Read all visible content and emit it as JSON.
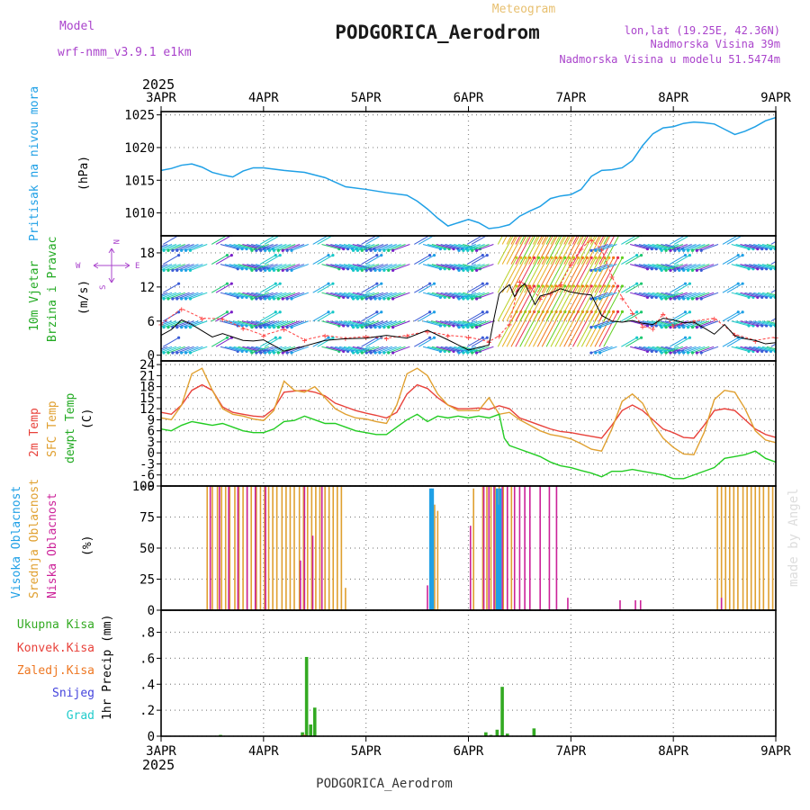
{
  "header": {
    "model_label": "Model",
    "model_name": "wrf-nmm_v3.9.1 e1km",
    "meteogram_label": "Meteogram",
    "station": "PODGORICA_Aerodrom",
    "lonlat": "lon,lat (19.25E, 42.36N)",
    "elevation": "Nadmorska Visina 39m",
    "model_elevation": "Nadmorska Visina u modelu 51.5474m"
  },
  "footer": {
    "station": "PODGORICA_Aerodrom",
    "credit": "made by Angel"
  },
  "time_axis": {
    "year": "2025",
    "labels": [
      "3APR",
      "4APR",
      "5APR",
      "6APR",
      "7APR",
      "8APR",
      "9APR"
    ],
    "days": [
      3,
      4,
      5,
      6,
      7,
      8,
      9
    ]
  },
  "colors": {
    "pressure": "#1fa0e6",
    "temp2m": "#e8413a",
    "sfc_temp": "#e0a030",
    "dewpt": "#22cc22",
    "high_cloud": "#1fa0e6",
    "mid_cloud": "#e0a030",
    "low_cloud": "#cc2299",
    "precip_total": "#33aa22",
    "precip_conv": "#e8413a",
    "precip_frz": "#ee7722",
    "precip_snow": "#4444dd",
    "precip_hail": "#22cccc",
    "wind_label": "#22aa22",
    "compass": "#aa44cc"
  },
  "panels": {
    "pressure": {
      "label_line1": "Pritisak na nivou mora",
      "unit": "(hPa)"
    },
    "wind": {
      "label_line1": "10m Vjetar",
      "label_line2": "Brzina i Pravac",
      "unit": "(m/s)",
      "compass_n": "N",
      "compass_s": "S",
      "compass_e": "E",
      "compass_w": "W"
    },
    "temp": {
      "label_temp": "2m Temp",
      "label_sfc": "SFC Temp",
      "label_dew": "dewpt Temp",
      "unit": "(C)"
    },
    "cloud": {
      "label_high": "Visoka Oblacnost",
      "label_mid": "Srednja Oblacnost",
      "label_low": "Niska Oblacnost",
      "unit": "(%)"
    },
    "precip": {
      "label_total": "Ukupna Kisa",
      "label_conv": "Konvek.Kisa",
      "label_frz": "Zaledj.Kisa",
      "label_snow": "Snijeg",
      "label_hail": "Grad",
      "unit": "1hr Precip (mm)"
    }
  },
  "chart_data": [
    {
      "type": "line",
      "name": "pressure",
      "x": [
        3.0,
        3.1,
        3.2,
        3.3,
        3.4,
        3.5,
        3.6,
        3.7,
        3.8,
        3.9,
        4.0,
        4.2,
        4.4,
        4.6,
        4.8,
        5.0,
        5.2,
        5.4,
        5.5,
        5.6,
        5.7,
        5.8,
        5.9,
        6.0,
        6.1,
        6.2,
        6.3,
        6.4,
        6.5,
        6.6,
        6.7,
        6.8,
        6.9,
        7.0,
        7.1,
        7.2,
        7.3,
        7.4,
        7.5,
        7.6,
        7.7,
        7.8,
        7.9,
        8.0,
        8.1,
        8.2,
        8.3,
        8.4,
        8.5,
        8.6,
        8.7,
        8.8,
        8.9,
        9.0
      ],
      "y": [
        1016.5,
        1016.8,
        1017.3,
        1017.5,
        1017.0,
        1016.2,
        1015.8,
        1015.5,
        1016.4,
        1016.9,
        1016.9,
        1016.5,
        1016.2,
        1015.4,
        1014.0,
        1013.6,
        1013.1,
        1012.7,
        1011.8,
        1010.6,
        1009.2,
        1008.0,
        1008.5,
        1009.0,
        1008.5,
        1007.6,
        1007.8,
        1008.2,
        1009.5,
        1010.3,
        1011.0,
        1012.2,
        1012.6,
        1012.8,
        1013.6,
        1015.6,
        1016.5,
        1016.6,
        1016.9,
        1018.0,
        1020.3,
        1022.1,
        1023.0,
        1023.2,
        1023.7,
        1023.9,
        1023.8,
        1023.6,
        1022.8,
        1022.0,
        1022.5,
        1023.2,
        1024.1,
        1024.6
      ],
      "ylim": [
        1006.5,
        1025.5
      ],
      "yticks": [
        1010,
        1015,
        1020,
        1025
      ]
    },
    {
      "type": "line",
      "name": "wind",
      "x": [
        3.0,
        3.1,
        3.2,
        3.3,
        3.4,
        3.5,
        3.6,
        3.7,
        3.8,
        3.9,
        4.0,
        4.2,
        4.4,
        4.6,
        4.8,
        5.0,
        5.2,
        5.4,
        5.6,
        5.8,
        6.0,
        6.2,
        6.25,
        6.3,
        6.35,
        6.4,
        6.45,
        6.5,
        6.55,
        6.6,
        6.65,
        6.7,
        6.8,
        6.9,
        7.0,
        7.1,
        7.2,
        7.3,
        7.4,
        7.5,
        7.6,
        7.7,
        7.8,
        7.9,
        8.0,
        8.1,
        8.2,
        8.3,
        8.4,
        8.5,
        8.6,
        8.7,
        8.8,
        8.9,
        9.0
      ],
      "y": [
        3.5,
        4.5,
        6.2,
        5.4,
        4.3,
        3.2,
        3.8,
        3.2,
        2.6,
        2.5,
        2.7,
        0.7,
        1.6,
        2.6,
        2.9,
        3.0,
        3.5,
        3.0,
        4.4,
        2.7,
        0.9,
        1.8,
        6.5,
        10.8,
        11.7,
        12.4,
        10.3,
        11.8,
        12.6,
        10.8,
        8.9,
        10.4,
        10.9,
        11.7,
        11.1,
        10.8,
        10.6,
        7.0,
        6.0,
        5.8,
        6.1,
        5.6,
        5.4,
        6.5,
        6.2,
        5.7,
        5.8,
        4.8,
        3.7,
        5.4,
        3.4,
        2.9,
        2.6,
        2.0,
        2.2
      ],
      "gust_x": [
        3.0,
        3.2,
        3.4,
        3.6,
        3.8,
        4.0,
        4.2,
        4.4,
        4.6,
        4.8,
        5.0,
        5.2,
        5.4,
        5.6,
        5.8,
        6.0,
        6.2,
        6.3,
        6.4,
        6.5,
        6.6,
        6.7,
        6.8,
        6.9,
        7.0,
        7.1,
        7.2,
        7.3,
        7.4,
        7.5,
        7.6,
        7.7,
        7.8,
        7.9,
        8.0,
        8.2,
        8.4,
        8.6,
        8.8,
        9.0
      ],
      "gust_y": [
        5.5,
        8.2,
        6.5,
        6.4,
        4.8,
        3.5,
        4.6,
        2.7,
        3.5,
        3.0,
        3.3,
        3.0,
        3.5,
        4.2,
        3.5,
        3.2,
        2.4,
        3.4,
        5.5,
        13.0,
        12.0,
        10.0,
        10.9,
        12.5,
        16.0,
        18.8,
        20.3,
        18.6,
        13.9,
        10.1,
        7.5,
        5.1,
        4.7,
        7.3,
        5.2,
        6.0,
        6.5,
        3.7,
        2.6,
        3.2
      ],
      "ylim": [
        -1,
        21
      ],
      "yticks": [
        0,
        6,
        12,
        18
      ]
    },
    {
      "type": "line",
      "name": "temperature",
      "series": [
        {
          "name": "2m Temp",
          "x": [
            3.0,
            3.1,
            3.2,
            3.3,
            3.4,
            3.5,
            3.6,
            3.7,
            3.8,
            3.9,
            4.0,
            4.1,
            4.2,
            4.3,
            4.4,
            4.5,
            4.6,
            4.7,
            4.8,
            4.9,
            5.0,
            5.1,
            5.2,
            5.3,
            5.4,
            5.5,
            5.6,
            5.7,
            5.8,
            5.9,
            6.0,
            6.1,
            6.2,
            6.3,
            6.4,
            6.5,
            6.6,
            6.7,
            6.8,
            6.9,
            7.0,
            7.1,
            7.2,
            7.3,
            7.4,
            7.5,
            7.6,
            7.7,
            7.8,
            7.9,
            8.0,
            8.1,
            8.2,
            8.3,
            8.4,
            8.5,
            8.6,
            8.7,
            8.8,
            8.9,
            9.0
          ],
          "y": [
            11,
            10.5,
            13,
            17,
            18.5,
            17,
            12.5,
            11,
            10.5,
            10,
            9.8,
            12,
            16.5,
            16.8,
            17,
            16.5,
            15.5,
            13.5,
            12.5,
            11.5,
            10.8,
            10.2,
            9.5,
            11,
            16,
            18.5,
            17.5,
            15,
            13,
            12,
            12,
            12.2,
            11.8,
            12.8,
            12,
            9.5,
            8.5,
            7.5,
            6.5,
            5.8,
            5.5,
            5.0,
            4.5,
            4.0,
            7.5,
            11.5,
            13,
            11.5,
            9,
            6.5,
            5.5,
            4.2,
            4.0,
            7.5,
            11.5,
            12,
            11.5,
            9,
            6.5,
            5,
            4.2
          ]
        },
        {
          "name": "SFC Temp",
          "x": [
            3.0,
            3.1,
            3.2,
            3.3,
            3.4,
            3.5,
            3.6,
            3.7,
            3.8,
            3.9,
            4.0,
            4.1,
            4.2,
            4.3,
            4.4,
            4.5,
            4.6,
            4.7,
            4.8,
            4.9,
            5.0,
            5.1,
            5.2,
            5.3,
            5.4,
            5.5,
            5.6,
            5.7,
            5.8,
            5.9,
            6.0,
            6.1,
            6.2,
            6.3,
            6.4,
            6.5,
            6.6,
            6.7,
            6.8,
            6.9,
            7.0,
            7.1,
            7.2,
            7.3,
            7.4,
            7.5,
            7.6,
            7.7,
            7.8,
            7.9,
            8.0,
            8.1,
            8.2,
            8.3,
            8.4,
            8.5,
            8.6,
            8.7,
            8.8,
            8.9,
            9.0
          ],
          "y": [
            9.5,
            9,
            13,
            21.5,
            23,
            17,
            12,
            10.5,
            10,
            9.2,
            8.8,
            11.5,
            19.5,
            17,
            16.5,
            18,
            15,
            12,
            10.5,
            9.5,
            9.2,
            8.5,
            8.0,
            13,
            21.5,
            23,
            21,
            16,
            13,
            11.5,
            11.5,
            11.5,
            15,
            10.5,
            11,
            9.0,
            7.5,
            6.0,
            5.0,
            4.5,
            3.8,
            2.5,
            1.0,
            0.5,
            6.5,
            14,
            16,
            13.5,
            8,
            4,
            1.5,
            -0.3,
            -0.5,
            5.5,
            14.5,
            17,
            16.5,
            12,
            6,
            3.5,
            2.8
          ]
        },
        {
          "name": "dewpt Temp",
          "x": [
            3.0,
            3.1,
            3.2,
            3.3,
            3.4,
            3.5,
            3.6,
            3.7,
            3.8,
            3.9,
            4.0,
            4.1,
            4.2,
            4.3,
            4.4,
            4.5,
            4.6,
            4.7,
            4.8,
            4.9,
            5.0,
            5.1,
            5.2,
            5.3,
            5.4,
            5.5,
            5.6,
            5.7,
            5.8,
            5.9,
            6.0,
            6.1,
            6.2,
            6.3,
            6.35,
            6.4,
            6.5,
            6.6,
            6.7,
            6.8,
            6.9,
            7.0,
            7.1,
            7.2,
            7.3,
            7.4,
            7.5,
            7.6,
            7.7,
            7.8,
            7.9,
            8.0,
            8.1,
            8.2,
            8.3,
            8.4,
            8.5,
            8.6,
            8.7,
            8.8,
            8.9,
            9.0
          ],
          "y": [
            6.5,
            6,
            7.5,
            8.5,
            8,
            7.5,
            8,
            7,
            6,
            5.5,
            5.5,
            6.5,
            8.5,
            8.8,
            10,
            9,
            8,
            8,
            7,
            6,
            5.5,
            5,
            5,
            7,
            9,
            10.5,
            8.5,
            10,
            9.5,
            10,
            9.5,
            10,
            9.5,
            10.5,
            4,
            2,
            1,
            0,
            -1,
            -2.5,
            -3.5,
            -4.0,
            -4.8,
            -5.5,
            -6.5,
            -5.0,
            -5.0,
            -4.5,
            -5.0,
            -5.5,
            -6,
            -7,
            -7,
            -6,
            -5,
            -4,
            -1.5,
            -1.0,
            -0.5,
            0.5,
            -1.5,
            -2.5
          ]
        }
      ],
      "ylim": [
        -9,
        25
      ],
      "yticks": [
        -9,
        -6,
        -3,
        0,
        3,
        6,
        9,
        12,
        15,
        18,
        21,
        24
      ]
    },
    {
      "type": "bar",
      "name": "cloud_cover",
      "ylim": [
        0,
        100
      ],
      "yticks": [
        0,
        25,
        50,
        75,
        100
      ],
      "series": [
        {
          "name": "Visoka Oblacnost",
          "x": [
            5.63,
            5.65,
            6.28,
            6.29,
            6.31
          ],
          "y": [
            98,
            98,
            98,
            85,
            98
          ]
        },
        {
          "name": "Srednja Oblacnost",
          "x": [
            3.45,
            3.5,
            3.55,
            3.59,
            3.63,
            3.67,
            3.72,
            3.76,
            3.8,
            3.84,
            3.88,
            3.93,
            3.97,
            4.01,
            4.05,
            4.09,
            4.13,
            4.18,
            4.22,
            4.26,
            4.3,
            4.35,
            4.39,
            4.43,
            4.47,
            4.51,
            4.55,
            4.6,
            4.64,
            4.68,
            4.72,
            4.76,
            4.8,
            5.67,
            5.7,
            6.05,
            6.14,
            6.18,
            6.22,
            6.26,
            6.3,
            6.34,
            6.38,
            6.42,
            8.43,
            8.47,
            8.51,
            8.55,
            8.59,
            8.63,
            8.68,
            8.72,
            8.76,
            8.8,
            8.84,
            8.88,
            8.93,
            8.97
          ],
          "y": [
            100,
            100,
            100,
            100,
            100,
            100,
            100,
            100,
            100,
            100,
            100,
            100,
            100,
            100,
            100,
            100,
            100,
            100,
            100,
            100,
            100,
            100,
            100,
            100,
            100,
            100,
            100,
            100,
            100,
            100,
            100,
            100,
            18,
            85,
            80,
            98,
            100,
            100,
            100,
            100,
            100,
            100,
            100,
            100,
            100,
            100,
            100,
            100,
            100,
            100,
            100,
            100,
            100,
            100,
            100,
            100,
            100,
            100
          ]
        },
        {
          "name": "Niska Oblacnost",
          "x": [
            3.48,
            3.57,
            3.66,
            3.75,
            3.84,
            3.92,
            4.02,
            4.36,
            4.4,
            4.48,
            4.57,
            5.6,
            6.02,
            6.15,
            6.2,
            6.25,
            6.33,
            6.38,
            6.45,
            6.5,
            6.55,
            6.6,
            6.7,
            6.79,
            6.86,
            6.97,
            7.48,
            7.63,
            7.68,
            8.47
          ],
          "y": [
            100,
            100,
            100,
            100,
            100,
            100,
            100,
            40,
            100,
            60,
            100,
            20,
            68,
            100,
            100,
            100,
            100,
            100,
            100,
            100,
            100,
            100,
            100,
            100,
            100,
            10,
            8,
            8,
            8,
            10
          ]
        }
      ]
    },
    {
      "type": "bar",
      "name": "precipitation",
      "ylim": [
        0,
        0.97
      ],
      "yticks": [
        0,
        0.2,
        0.4,
        0.6,
        0.8
      ],
      "series": [
        {
          "name": "Ukupna Kisa",
          "x": [
            3.58,
            4.38,
            4.42,
            4.46,
            4.5,
            6.17,
            6.22,
            6.28,
            6.33,
            6.38,
            6.64
          ],
          "y": [
            0.01,
            0.03,
            0.61,
            0.09,
            0.22,
            0.03,
            0.01,
            0.05,
            0.38,
            0.02,
            0.06
          ]
        },
        {
          "name": "Konvek.Kisa",
          "x": [
            4.4
          ],
          "y": [
            0.01
          ]
        },
        {
          "name": "Zaledj.Kisa",
          "x": [],
          "y": []
        },
        {
          "name": "Snijeg",
          "x": [],
          "y": []
        },
        {
          "name": "Grad",
          "x": [],
          "y": []
        }
      ]
    }
  ]
}
